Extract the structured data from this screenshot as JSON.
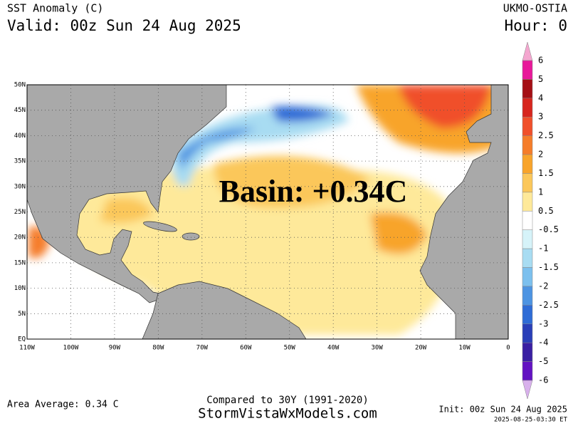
{
  "header": {
    "title": "SST Anomaly (C)",
    "valid": "Valid: 00z Sun 24 Aug 2025",
    "source": "UKMO-OSTIA",
    "hour": "Hour: 0"
  },
  "map": {
    "annotation": "Basin: +0.34C",
    "lat_labels": [
      "50N",
      "45N",
      "40N",
      "35N",
      "30N",
      "25N",
      "20N",
      "15N",
      "10N",
      "5N",
      "EQ"
    ],
    "lon_labels": [
      "110W",
      "100W",
      "90W",
      "80W",
      "70W",
      "60W",
      "50W",
      "40W",
      "30W",
      "20W",
      "10W",
      "0"
    ]
  },
  "colorbar": {
    "labels": [
      "6",
      "5",
      "4",
      "3",
      "2.5",
      "2",
      "1.5",
      "1",
      "0.5",
      "-0.5",
      "-1",
      "-1.5",
      "-2",
      "-2.5",
      "-3",
      "-4",
      "-5",
      "-6"
    ],
    "colors": [
      "#f4a6cf",
      "#e8189a",
      "#a50f15",
      "#d7261e",
      "#f0502b",
      "#f57d2a",
      "#f8a42b",
      "#fbc75a",
      "#fee99a",
      "#ffffff",
      "#d6f3f9",
      "#a8dcf2",
      "#7cc0ee",
      "#4d94e2",
      "#2f6cd6",
      "#2a3fb8",
      "#3a1fa3",
      "#6312c2",
      "#9a10d8",
      "#d8b0ec"
    ]
  },
  "footer": {
    "area_average": "Area Average: 0.34 C",
    "compared": "Compared to 30Y (1991-2020)",
    "site": "StormVistaWxModels.com",
    "init": "Init: 00z Sun 24 Aug 2025",
    "generated": "2025-08-25-03:30 ET"
  }
}
